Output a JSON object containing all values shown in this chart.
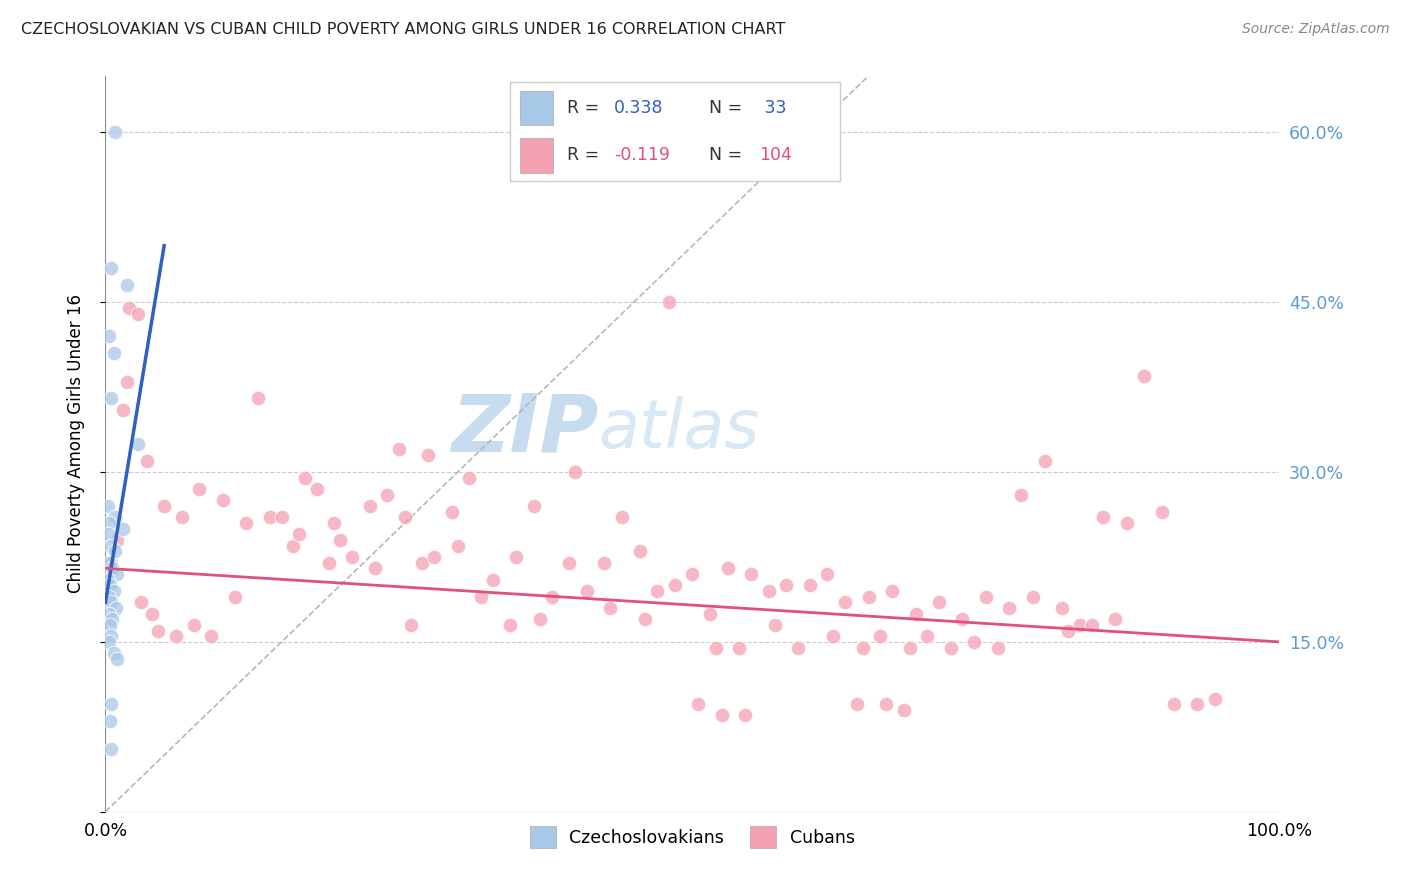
{
  "title": "CZECHOSLOVAKIAN VS CUBAN CHILD POVERTY AMONG GIRLS UNDER 16 CORRELATION CHART",
  "source": "Source: ZipAtlas.com",
  "ylabel": "Child Poverty Among Girls Under 16",
  "xmin": 0.0,
  "xmax": 100.0,
  "ymin": 0.0,
  "ymax": 65.0,
  "yticks": [
    0.0,
    15.0,
    30.0,
    45.0,
    60.0
  ],
  "ytick_labels_right": [
    "",
    "15.0%",
    "30.0%",
    "45.0%",
    "60.0%"
  ],
  "blue_color": "#a8c8e8",
  "pink_color": "#f4a0b0",
  "blue_line_color": "#3060c0",
  "pink_line_color": "#e05080",
  "r1_color": "#3060c0",
  "n1_color": "#3060c0",
  "r2_color": "#e05080",
  "n2_color": "#e05080",
  "watermark_zip": "ZIP",
  "watermark_atlas": "atlas",
  "watermark_color": "#c8dcf0",
  "blue_line_x": [
    0.0,
    5.0
  ],
  "blue_line_y": [
    18.5,
    50.0
  ],
  "pink_line_x": [
    0.0,
    100.0
  ],
  "pink_line_y": [
    21.5,
    15.0
  ],
  "diag_line_x": [
    0.0,
    65.0
  ],
  "diag_line_y": [
    0.0,
    65.0
  ],
  "czech_dots": [
    [
      0.8,
      60.0
    ],
    [
      0.5,
      48.0
    ],
    [
      1.8,
      46.5
    ],
    [
      0.3,
      42.0
    ],
    [
      0.7,
      40.5
    ],
    [
      0.5,
      36.5
    ],
    [
      2.8,
      32.5
    ],
    [
      0.2,
      27.0
    ],
    [
      0.8,
      26.0
    ],
    [
      0.3,
      25.5
    ],
    [
      1.5,
      25.0
    ],
    [
      0.2,
      24.5
    ],
    [
      0.5,
      23.5
    ],
    [
      0.8,
      23.0
    ],
    [
      0.3,
      22.0
    ],
    [
      0.6,
      21.5
    ],
    [
      1.0,
      21.0
    ],
    [
      0.2,
      20.5
    ],
    [
      0.4,
      20.0
    ],
    [
      0.7,
      19.5
    ],
    [
      0.3,
      19.0
    ],
    [
      0.5,
      18.5
    ],
    [
      0.9,
      18.0
    ],
    [
      0.3,
      17.5
    ],
    [
      0.6,
      17.0
    ],
    [
      0.4,
      16.5
    ],
    [
      0.5,
      15.5
    ],
    [
      0.3,
      15.0
    ],
    [
      0.7,
      14.0
    ],
    [
      1.0,
      13.5
    ],
    [
      0.5,
      9.5
    ],
    [
      0.4,
      8.0
    ],
    [
      0.5,
      5.5
    ]
  ],
  "cuban_dots": [
    [
      0.5,
      22.0
    ],
    [
      1.0,
      24.0
    ],
    [
      1.5,
      35.5
    ],
    [
      2.0,
      44.5
    ],
    [
      2.8,
      44.0
    ],
    [
      1.8,
      38.0
    ],
    [
      3.5,
      31.0
    ],
    [
      5.0,
      27.0
    ],
    [
      6.5,
      26.0
    ],
    [
      8.0,
      28.5
    ],
    [
      10.0,
      27.5
    ],
    [
      12.0,
      25.5
    ],
    [
      14.0,
      26.0
    ],
    [
      16.0,
      23.5
    ],
    [
      13.0,
      36.5
    ],
    [
      17.0,
      29.5
    ],
    [
      18.0,
      28.5
    ],
    [
      19.5,
      25.5
    ],
    [
      20.0,
      24.0
    ],
    [
      21.0,
      22.5
    ],
    [
      22.5,
      27.0
    ],
    [
      24.0,
      28.0
    ],
    [
      25.5,
      26.0
    ],
    [
      27.0,
      22.0
    ],
    [
      15.0,
      26.0
    ],
    [
      16.5,
      24.5
    ],
    [
      28.0,
      22.5
    ],
    [
      29.5,
      26.5
    ],
    [
      31.0,
      29.5
    ],
    [
      30.0,
      23.5
    ],
    [
      33.0,
      20.5
    ],
    [
      35.0,
      22.5
    ],
    [
      36.5,
      27.0
    ],
    [
      38.0,
      19.0
    ],
    [
      39.5,
      22.0
    ],
    [
      41.0,
      19.5
    ],
    [
      42.5,
      22.0
    ],
    [
      44.0,
      26.0
    ],
    [
      45.5,
      23.0
    ],
    [
      25.0,
      32.0
    ],
    [
      27.5,
      31.5
    ],
    [
      47.0,
      19.5
    ],
    [
      48.5,
      20.0
    ],
    [
      50.0,
      21.0
    ],
    [
      51.5,
      17.5
    ],
    [
      53.0,
      21.5
    ],
    [
      55.0,
      21.0
    ],
    [
      56.5,
      19.5
    ],
    [
      58.0,
      20.0
    ],
    [
      40.0,
      30.0
    ],
    [
      60.0,
      20.0
    ],
    [
      61.5,
      21.0
    ],
    [
      63.0,
      18.5
    ],
    [
      65.0,
      19.0
    ],
    [
      67.0,
      19.5
    ],
    [
      48.0,
      45.0
    ],
    [
      69.0,
      17.5
    ],
    [
      71.0,
      18.5
    ],
    [
      73.0,
      17.0
    ],
    [
      75.0,
      19.0
    ],
    [
      77.0,
      18.0
    ],
    [
      79.0,
      19.0
    ],
    [
      78.0,
      28.0
    ],
    [
      80.0,
      31.0
    ],
    [
      81.5,
      18.0
    ],
    [
      83.0,
      16.5
    ],
    [
      85.0,
      26.0
    ],
    [
      87.0,
      25.5
    ],
    [
      88.5,
      38.5
    ],
    [
      90.0,
      26.5
    ],
    [
      3.0,
      18.5
    ],
    [
      4.0,
      17.5
    ],
    [
      4.5,
      16.0
    ],
    [
      6.0,
      15.5
    ],
    [
      7.5,
      16.5
    ],
    [
      9.0,
      15.5
    ],
    [
      11.0,
      19.0
    ],
    [
      19.0,
      22.0
    ],
    [
      23.0,
      21.5
    ],
    [
      26.0,
      16.5
    ],
    [
      32.0,
      19.0
    ],
    [
      34.5,
      16.5
    ],
    [
      37.0,
      17.0
    ],
    [
      43.0,
      18.0
    ],
    [
      46.0,
      17.0
    ],
    [
      52.0,
      14.5
    ],
    [
      54.0,
      14.5
    ],
    [
      57.0,
      16.5
    ],
    [
      59.0,
      14.5
    ],
    [
      62.0,
      15.5
    ],
    [
      64.5,
      14.5
    ],
    [
      66.0,
      15.5
    ],
    [
      68.5,
      14.5
    ],
    [
      70.0,
      15.5
    ],
    [
      72.0,
      14.5
    ],
    [
      74.0,
      15.0
    ],
    [
      76.0,
      14.5
    ],
    [
      82.0,
      16.0
    ],
    [
      84.0,
      16.5
    ],
    [
      86.0,
      17.0
    ],
    [
      91.0,
      9.5
    ],
    [
      93.0,
      9.5
    ],
    [
      94.5,
      10.0
    ],
    [
      64.0,
      9.5
    ],
    [
      66.5,
      9.5
    ],
    [
      68.0,
      9.0
    ],
    [
      50.5,
      9.5
    ],
    [
      52.5,
      8.5
    ],
    [
      54.5,
      8.5
    ]
  ]
}
